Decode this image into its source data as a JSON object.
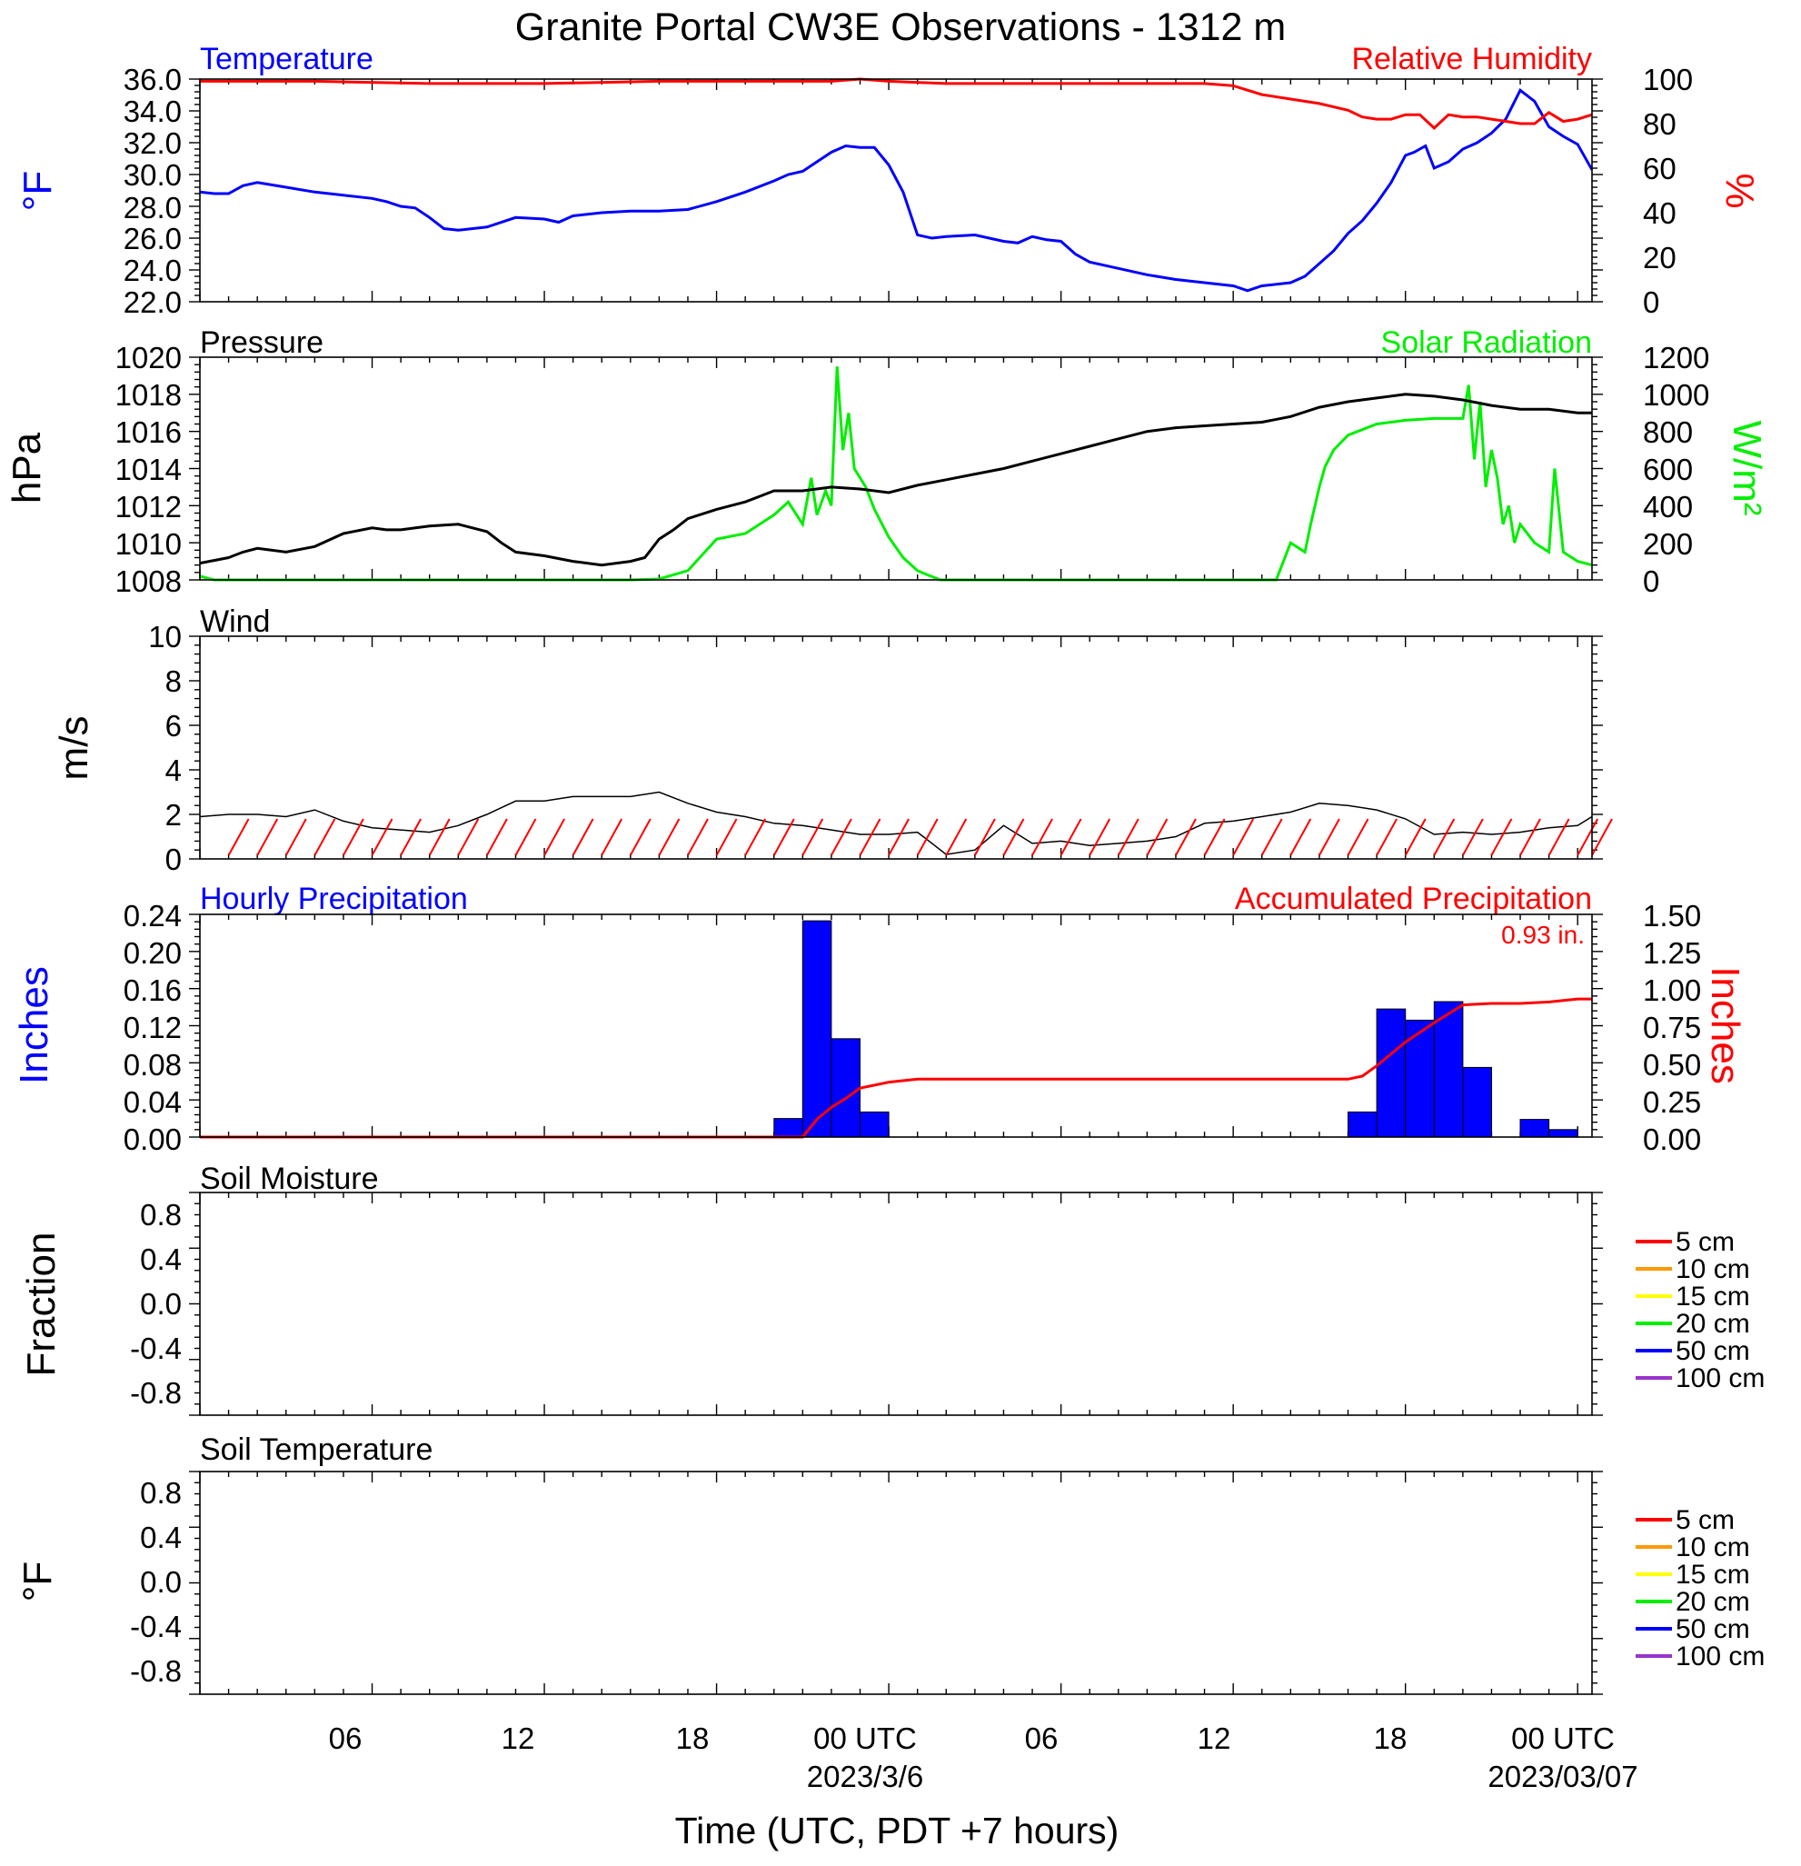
{
  "title": "Granite Portal CW3E Observations - 1312 m",
  "xaxis": {
    "label": "Time (UTC, PDT +7 hours)",
    "range_hours": [
      0,
      48.5
    ],
    "ticks": [
      {
        "hour": 6,
        "label": "06"
      },
      {
        "hour": 12,
        "label": "12"
      },
      {
        "hour": 18,
        "label": "18"
      },
      {
        "hour": 24,
        "label": "00 UTC",
        "date": "2023/3/6"
      },
      {
        "hour": 30,
        "label": "06"
      },
      {
        "hour": 36,
        "label": "12"
      },
      {
        "hour": 42,
        "label": "18"
      },
      {
        "hour": 48,
        "label": "00 UTC",
        "date": "2023/03/07"
      }
    ]
  },
  "colors": {
    "temperature": "#0000ff",
    "humidity": "#ff0000",
    "pressure": "#000000",
    "solar": "#00ee00",
    "wind": "#000000",
    "wind_barb": "#ff0000",
    "hourly_precip": "#0000ff",
    "accum_precip": "#ff0000"
  },
  "panels": {
    "temp_rh": {
      "left_title": "Temperature",
      "right_title": "Relative Humidity",
      "left_unit": "°F",
      "right_unit": "%",
      "left_ticks": [
        "36.0",
        "34.0",
        "32.0",
        "30.0",
        "28.0",
        "26.0",
        "24.0",
        "22.0"
      ],
      "right_ticks": [
        "100",
        "80",
        "60",
        "40",
        "20",
        "0"
      ]
    },
    "pressure_solar": {
      "left_title": "Pressure",
      "right_title": "Solar Radiation",
      "left_unit": "hPa",
      "right_unit": "W/m²",
      "left_ticks": [
        "1020",
        "1018",
        "1016",
        "1014",
        "1012",
        "1010",
        "1008"
      ],
      "right_ticks": [
        "1200",
        "1000",
        "800",
        "600",
        "400",
        "200",
        "0"
      ]
    },
    "wind": {
      "left_title": "Wind",
      "left_unit": "m/s",
      "left_ticks": [
        "10",
        "8",
        "6",
        "4",
        "2",
        "0"
      ]
    },
    "precip": {
      "left_title": "Hourly Precipitation",
      "right_title": "Accumulated Precipitation",
      "total_label": "0.93 in.",
      "left_unit": "Inches",
      "right_unit": "Inches",
      "left_ticks": [
        "0.24",
        "0.20",
        "0.16",
        "0.12",
        "0.08",
        "0.04",
        "0.00"
      ],
      "right_ticks": [
        "1.50",
        "1.25",
        "1.00",
        "0.75",
        "0.50",
        "0.25",
        "0.00"
      ]
    },
    "soil_moisture": {
      "left_title": "Soil Moisture",
      "left_unit": "Fraction",
      "left_ticks": [
        "0.8",
        "0.4",
        "0.0",
        "-0.4",
        "-0.8"
      ]
    },
    "soil_temp": {
      "left_title": "Soil Temperature",
      "left_unit": "°F",
      "left_ticks": [
        "0.8",
        "0.4",
        "0.0",
        "-0.4",
        "-0.8"
      ]
    }
  },
  "legend": [
    {
      "label": "5 cm",
      "color": "#ff0000"
    },
    {
      "label": "10 cm",
      "color": "#ff9900"
    },
    {
      "label": "15 cm",
      "color": "#ffff00"
    },
    {
      "label": "20 cm",
      "color": "#00ee00"
    },
    {
      "label": "50 cm",
      "color": "#0000ff"
    },
    {
      "label": "100 cm",
      "color": "#9933cc"
    }
  ],
  "chart_data": [
    {
      "type": "line",
      "title": "Temperature / Relative Humidity",
      "x_unit": "hours since 2023-03-05 00 UTC",
      "ylim_left": [
        22,
        36
      ],
      "ylim_right": [
        0,
        100
      ],
      "series": [
        {
          "name": "Temperature",
          "axis": "left",
          "x": [
            0,
            0.5,
            1,
            1.5,
            2,
            3,
            4,
            5,
            6,
            6.5,
            7,
            7.5,
            8,
            8.5,
            9,
            10,
            11,
            12,
            12.5,
            13,
            14,
            15,
            16,
            17,
            18,
            19,
            20,
            20.5,
            21,
            22,
            22.5,
            23,
            23.5,
            24,
            24.5,
            25,
            25.5,
            26,
            27,
            28,
            28.5,
            29,
            29.5,
            30,
            30.5,
            31,
            32,
            33,
            34,
            35,
            36,
            36.5,
            37,
            38,
            38.5,
            39,
            39.5,
            40,
            40.5,
            41,
            41.5,
            42,
            42.3,
            42.7,
            43,
            43.5,
            44,
            44.5,
            45,
            45.5,
            46,
            46.5,
            47,
            47.5,
            48,
            48.5
          ],
          "y": [
            28.9,
            28.8,
            28.8,
            29.3,
            29.5,
            29.2,
            28.9,
            28.7,
            28.5,
            28.3,
            28.0,
            27.9,
            27.3,
            26.6,
            26.5,
            26.7,
            27.3,
            27.2,
            27.0,
            27.4,
            27.6,
            27.7,
            27.7,
            27.8,
            28.3,
            28.9,
            29.6,
            30.0,
            30.2,
            31.4,
            31.8,
            31.7,
            31.7,
            30.6,
            28.9,
            26.2,
            26.0,
            26.1,
            26.2,
            25.8,
            25.7,
            26.1,
            25.9,
            25.8,
            25.0,
            24.5,
            24.1,
            23.7,
            23.4,
            23.2,
            23.0,
            22.7,
            23.0,
            23.2,
            23.6,
            24.4,
            25.2,
            26.3,
            27.1,
            28.2,
            29.5,
            31.2,
            31.4,
            31.8,
            30.4,
            30.8,
            31.6,
            32.0,
            32.6,
            33.5,
            35.3,
            34.6,
            33.0,
            32.4,
            31.9,
            30.3
          ]
        },
        {
          "name": "Relative Humidity",
          "axis": "right",
          "x": [
            0,
            4,
            8,
            12,
            16,
            20,
            22,
            23,
            24,
            26,
            30,
            35,
            36,
            37,
            38,
            39,
            40,
            40.5,
            41,
            41.5,
            42,
            42.5,
            43,
            43.5,
            44,
            44.5,
            45,
            45.5,
            46,
            46.5,
            47,
            47.5,
            48,
            48.5
          ],
          "y": [
            99,
            99,
            98,
            98,
            99,
            99,
            99,
            100,
            99,
            98,
            98,
            98,
            97,
            93,
            91,
            89,
            86,
            83,
            82,
            82,
            84,
            84,
            78,
            84,
            83,
            83,
            82,
            81,
            80,
            80,
            85,
            81,
            82,
            84
          ]
        }
      ]
    },
    {
      "type": "line",
      "title": "Pressure / Solar Radiation",
      "x_unit": "hours since 2023-03-05 00 UTC",
      "ylim_left": [
        1008,
        1020
      ],
      "ylim_right": [
        0,
        1200
      ],
      "series": [
        {
          "name": "Pressure",
          "axis": "left",
          "x": [
            0,
            1,
            1.5,
            2,
            3,
            4,
            5,
            6,
            6.5,
            7,
            8,
            9,
            10,
            10.5,
            11,
            12,
            13,
            14,
            15,
            15.5,
            16,
            16.5,
            17,
            18,
            19,
            19.5,
            20,
            21,
            22,
            23,
            24,
            25,
            26,
            27,
            28,
            29,
            30,
            31,
            32,
            33,
            34,
            35,
            36,
            37,
            38,
            39,
            40,
            41,
            42,
            43,
            44,
            45,
            46,
            47,
            48,
            48.5
          ],
          "y": [
            1008.9,
            1009.2,
            1009.5,
            1009.7,
            1009.5,
            1009.8,
            1010.5,
            1010.8,
            1010.7,
            1010.7,
            1010.9,
            1011.0,
            1010.6,
            1010.0,
            1009.5,
            1009.3,
            1009.0,
            1008.8,
            1009.0,
            1009.2,
            1010.2,
            1010.7,
            1011.3,
            1011.8,
            1012.2,
            1012.5,
            1012.8,
            1012.8,
            1013.0,
            1012.9,
            1012.7,
            1013.1,
            1013.4,
            1013.7,
            1014.0,
            1014.4,
            1014.8,
            1015.2,
            1015.6,
            1016.0,
            1016.2,
            1016.3,
            1016.4,
            1016.5,
            1016.8,
            1017.3,
            1017.6,
            1017.8,
            1018.0,
            1017.9,
            1017.7,
            1017.4,
            1017.2,
            1017.2,
            1017.0,
            1017.0
          ]
        },
        {
          "name": "Solar Radiation",
          "axis": "right",
          "x": [
            0,
            0.5,
            15,
            16,
            17,
            18,
            19,
            19.5,
            20,
            20.5,
            21,
            21.3,
            21.5,
            21.8,
            22,
            22.2,
            22.4,
            22.6,
            22.8,
            23.2,
            23.5,
            24,
            24.5,
            25,
            25.3,
            25.8,
            26,
            37.5,
            38,
            38.5,
            38.7,
            39,
            39.2,
            39.5,
            40,
            41,
            42,
            43,
            44,
            44.2,
            44.4,
            44.6,
            44.8,
            45,
            45.2,
            45.4,
            45.6,
            45.8,
            46,
            46.5,
            47,
            47.2,
            47.5,
            48,
            48.5
          ],
          "y": [
            20,
            0,
            0,
            5,
            50,
            220,
            250,
            300,
            350,
            420,
            300,
            550,
            350,
            480,
            400,
            1150,
            700,
            900,
            600,
            500,
            380,
            230,
            120,
            50,
            30,
            0,
            0,
            0,
            200,
            150,
            300,
            500,
            610,
            700,
            780,
            840,
            860,
            870,
            870,
            1050,
            650,
            960,
            500,
            700,
            550,
            300,
            400,
            200,
            300,
            200,
            150,
            600,
            150,
            100,
            80
          ]
        }
      ]
    },
    {
      "type": "line",
      "title": "Wind",
      "x_unit": "hours since 2023-03-05 00 UTC",
      "ylim": [
        0,
        10
      ],
      "series": [
        {
          "name": "Wind speed",
          "x": [
            0,
            1,
            2,
            3,
            4,
            5,
            6,
            7,
            8,
            9,
            10,
            11,
            12,
            13,
            14,
            15,
            16,
            17,
            18,
            19,
            20,
            21,
            22,
            23,
            24,
            25,
            26,
            27,
            28,
            29,
            30,
            31,
            32,
            33,
            34,
            35,
            36,
            37,
            38,
            39,
            40,
            41,
            42,
            43,
            44,
            45,
            46,
            47,
            48,
            48.5
          ],
          "y": [
            1.9,
            2.0,
            2.0,
            1.9,
            2.2,
            1.7,
            1.4,
            1.3,
            1.2,
            1.5,
            2.0,
            2.6,
            2.6,
            2.8,
            2.8,
            2.8,
            3.0,
            2.5,
            2.1,
            1.9,
            1.6,
            1.5,
            1.3,
            1.1,
            1.1,
            1.2,
            0.2,
            0.4,
            1.5,
            0.7,
            0.8,
            0.6,
            0.7,
            0.8,
            1.0,
            1.6,
            1.7,
            1.9,
            2.1,
            2.5,
            2.4,
            2.2,
            1.8,
            1.1,
            1.2,
            1.1,
            1.2,
            1.4,
            1.5,
            1.9
          ]
        }
      ]
    },
    {
      "type": "bar",
      "title": "Hourly Precipitation / Accumulated Precipitation",
      "x_unit": "hours since 2023-03-05 00 UTC",
      "ylim_left": [
        0,
        0.24
      ],
      "ylim_right": [
        0,
        1.5
      ],
      "series": [
        {
          "name": "Hourly Precipitation",
          "axis": "left",
          "x": [
            20.5,
            21.5,
            22.5,
            23.5,
            40.5,
            41.5,
            42.5,
            43.5,
            44.5,
            46.5,
            47.5
          ],
          "y": [
            0.02,
            0.233,
            0.106,
            0.027,
            0.027,
            0.138,
            0.126,
            0.146,
            0.075,
            0.019,
            0.008
          ]
        },
        {
          "name": "Accumulated Precipitation",
          "axis": "right",
          "type": "line",
          "x": [
            0,
            21,
            21.5,
            22,
            22.5,
            23,
            24,
            25,
            40,
            40.5,
            41,
            41.5,
            42,
            43,
            44,
            45,
            46,
            47,
            48,
            48.5
          ],
          "y": [
            0,
            0,
            0.12,
            0.2,
            0.26,
            0.33,
            0.37,
            0.39,
            0.39,
            0.41,
            0.48,
            0.56,
            0.64,
            0.77,
            0.89,
            0.9,
            0.9,
            0.91,
            0.93,
            0.93
          ]
        }
      ]
    }
  ]
}
